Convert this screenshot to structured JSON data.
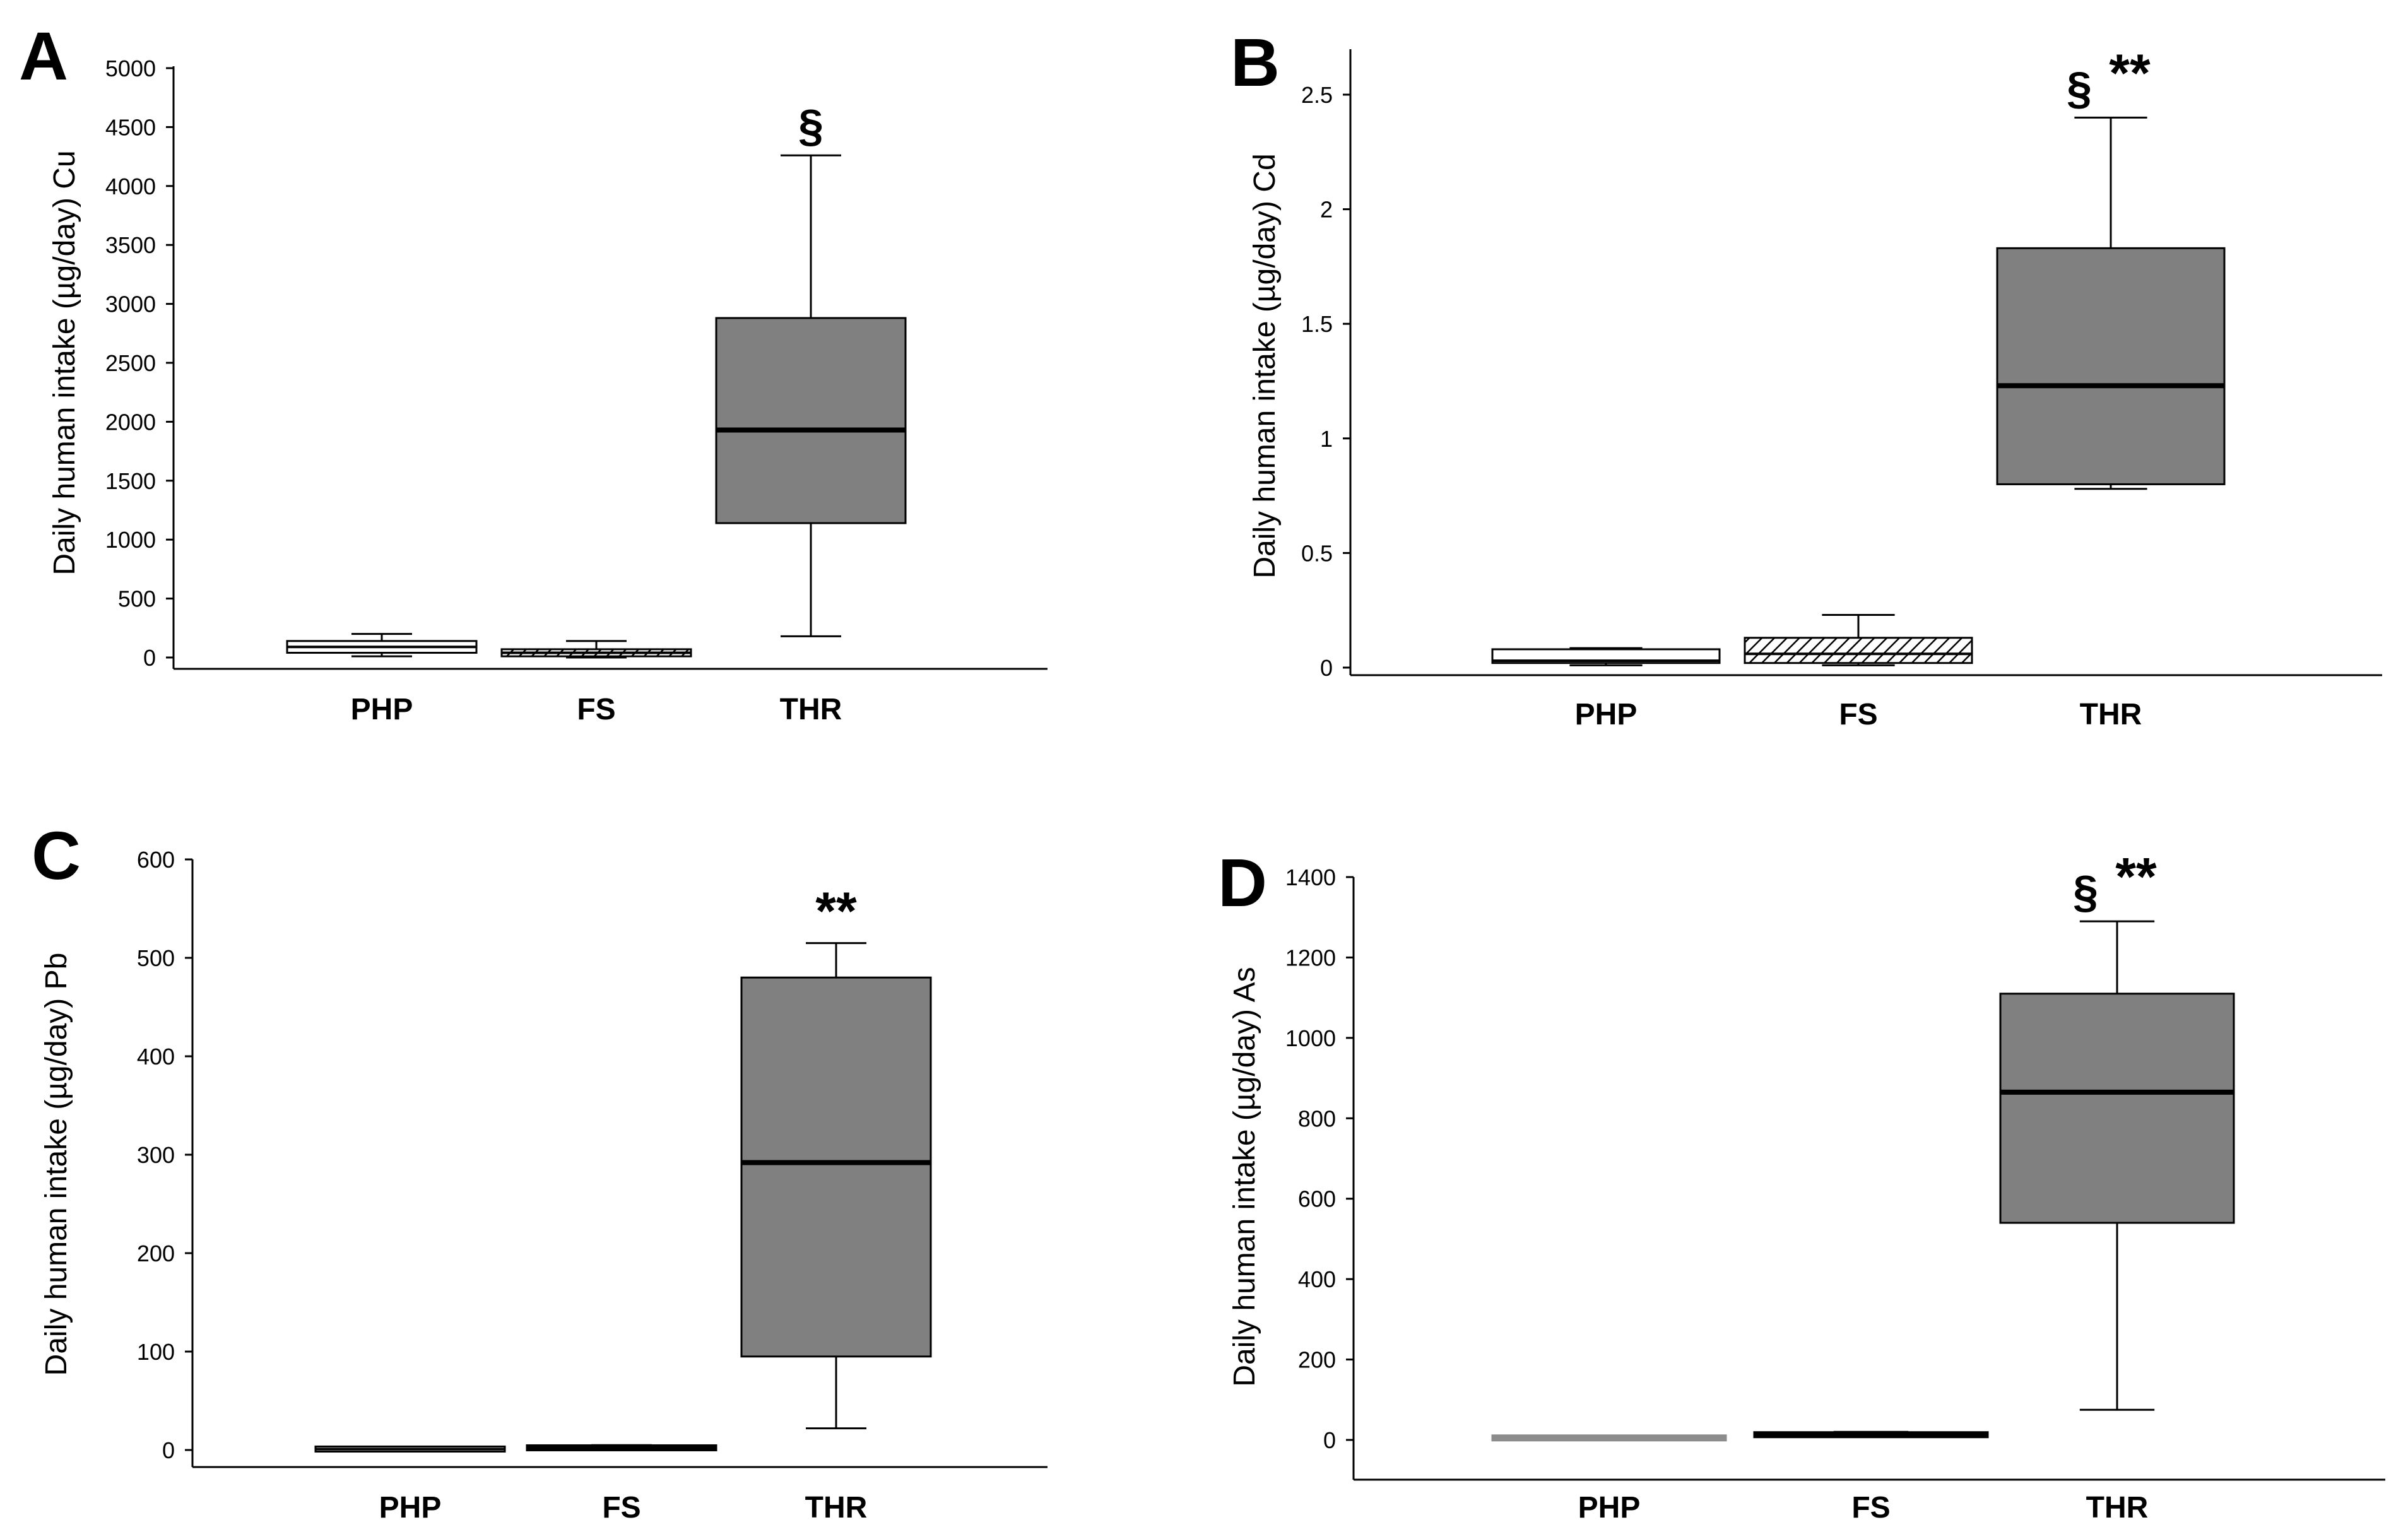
{
  "colors": {
    "thr_fill": "#808080",
    "php_fill": "#ffffff",
    "axis": "#000000",
    "median": "#000000",
    "flat_php_d": "#8c8c8c"
  },
  "chart_data": [
    {
      "type": "box",
      "panel": "A",
      "ylabel": "Daily human intake (µg/day) Cu",
      "ylim": [
        0,
        5000
      ],
      "yticks": [
        0,
        500,
        1000,
        1500,
        2000,
        2500,
        3000,
        3500,
        4000,
        4500,
        5000
      ],
      "ytick_labels": [
        "0",
        "500",
        "1000",
        "1500",
        "2000",
        "2500",
        "3000",
        "3500",
        "4000",
        "4500",
        "5000"
      ],
      "categories": [
        "PHP",
        "FS",
        "THR"
      ],
      "boxes": [
        {
          "category": "PHP",
          "fill": "white",
          "whisker_low": 10,
          "q1": 40,
          "median": 90,
          "q3": 140,
          "whisker_high": 200
        },
        {
          "category": "FS",
          "fill": "hatch",
          "whisker_low": 0,
          "q1": 10,
          "median": 40,
          "q3": 70,
          "whisker_high": 140
        },
        {
          "category": "THR",
          "fill": "gray",
          "whisker_low": 180,
          "q1": 1140,
          "median": 1930,
          "q3": 2880,
          "whisker_high": 4260,
          "annotation": "§"
        }
      ]
    },
    {
      "type": "box",
      "panel": "B",
      "ylabel": "Daily human intake (µg/day) Cd",
      "ylim": [
        0,
        2.5
      ],
      "yticks": [
        0,
        0.5,
        1,
        1.5,
        2,
        2.5
      ],
      "ytick_labels": [
        "0",
        "0.5",
        "1",
        "1.5",
        "2",
        "2.5"
      ],
      "categories": [
        "PHP",
        "FS",
        "THR"
      ],
      "boxes": [
        {
          "category": "PHP",
          "fill": "white",
          "whisker_low": 0.01,
          "q1": 0.02,
          "median": 0.03,
          "q3": 0.08,
          "whisker_high": 0.085
        },
        {
          "category": "FS",
          "fill": "hatch",
          "whisker_low": 0.01,
          "q1": 0.02,
          "median": 0.06,
          "q3": 0.13,
          "whisker_high": 0.23
        },
        {
          "category": "THR",
          "fill": "gray",
          "whisker_low": 0.78,
          "q1": 0.8,
          "median": 1.23,
          "q3": 1.83,
          "whisker_high": 2.4,
          "annotation": "§ **"
        }
      ]
    },
    {
      "type": "box",
      "panel": "C",
      "ylabel": "Daily human intake (µg/day) Pb",
      "ylim": [
        0,
        600
      ],
      "yticks": [
        0,
        100,
        200,
        300,
        400,
        500,
        600
      ],
      "ytick_labels": [
        "0",
        "100",
        "200",
        "300",
        "400",
        "500",
        "600"
      ],
      "categories": [
        "PHP",
        "FS",
        "THR"
      ],
      "boxes": [
        {
          "category": "PHP",
          "fill": "white",
          "whisker_low": 0,
          "q1": 0.5,
          "median": 1,
          "q3": 1.5,
          "whisker_high": 2
        },
        {
          "category": "FS",
          "fill": "black",
          "whisker_low": 1,
          "q1": 1.5,
          "median": 2,
          "q3": 3,
          "whisker_high": 5
        },
        {
          "category": "THR",
          "fill": "gray",
          "whisker_low": 22,
          "q1": 95,
          "median": 292,
          "q3": 480,
          "whisker_high": 515,
          "annotation": "**"
        }
      ]
    },
    {
      "type": "box",
      "panel": "D",
      "ylabel": "Daily human intake (µg/day)  As",
      "ylim": [
        -100,
        1400
      ],
      "yticks": [
        0,
        200,
        400,
        600,
        800,
        1000,
        1200,
        1400
      ],
      "ytick_labels": [
        "0",
        "200",
        "400",
        "600",
        "800",
        "1000",
        "1200",
        "1400"
      ],
      "categories": [
        "PHP",
        "FS",
        "THR"
      ],
      "boxes": [
        {
          "category": "PHP",
          "fill": "lightgray",
          "whisker_low": 3,
          "q1": 4,
          "median": 5,
          "q3": 6,
          "whisker_high": 7
        },
        {
          "category": "FS",
          "fill": "black",
          "whisker_low": 8,
          "q1": 10,
          "median": 13,
          "q3": 16,
          "whisker_high": 20
        },
        {
          "category": "THR",
          "fill": "gray",
          "whisker_low": 75,
          "q1": 540,
          "median": 865,
          "q3": 1110,
          "whisker_high": 1290,
          "annotation": "§ **"
        }
      ]
    }
  ]
}
